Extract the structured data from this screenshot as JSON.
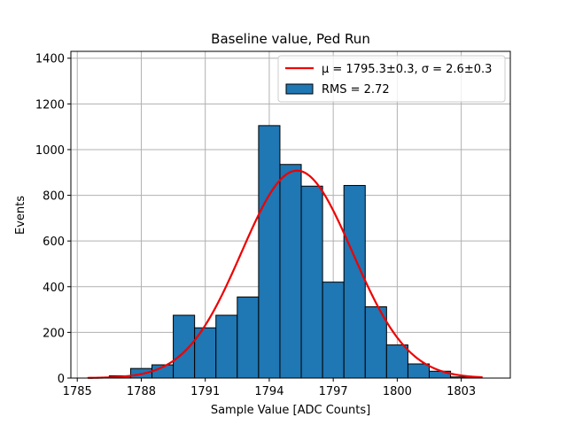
{
  "chart_data": {
    "type": "bar",
    "title": "Baseline value, Ped Run",
    "xlabel": "Sample Value [ADC Counts]",
    "ylabel": "Events",
    "xlim": [
      1784.7,
      1805.3
    ],
    "ylim": [
      0,
      1430
    ],
    "x_ticks": [
      1785,
      1788,
      1791,
      1794,
      1797,
      1800,
      1803
    ],
    "y_ticks": [
      0,
      200,
      400,
      600,
      800,
      1000,
      1200,
      1400
    ],
    "grid": true,
    "legend_position": "top-right",
    "bar_color": "#1f77b4",
    "fit_color": "#ee0000",
    "bins": [
      {
        "start": 1785.5,
        "end": 1786.5,
        "value": 2
      },
      {
        "start": 1786.5,
        "end": 1787.5,
        "value": 10
      },
      {
        "start": 1787.5,
        "end": 1788.5,
        "value": 42
      },
      {
        "start": 1788.5,
        "end": 1789.5,
        "value": 58
      },
      {
        "start": 1789.5,
        "end": 1790.5,
        "value": 275
      },
      {
        "start": 1790.5,
        "end": 1791.5,
        "value": 220
      },
      {
        "start": 1791.5,
        "end": 1792.5,
        "value": 275
      },
      {
        "start": 1792.5,
        "end": 1793.5,
        "value": 355
      },
      {
        "start": 1793.5,
        "end": 1794.5,
        "value": 1105
      },
      {
        "start": 1794.5,
        "end": 1795.5,
        "value": 935
      },
      {
        "start": 1795.5,
        "end": 1796.5,
        "value": 840
      },
      {
        "start": 1796.5,
        "end": 1797.5,
        "value": 420
      },
      {
        "start": 1797.5,
        "end": 1798.5,
        "value": 843
      },
      {
        "start": 1798.5,
        "end": 1799.5,
        "value": 312
      },
      {
        "start": 1799.5,
        "end": 1800.5,
        "value": 145
      },
      {
        "start": 1800.5,
        "end": 1801.5,
        "value": 62
      },
      {
        "start": 1801.5,
        "end": 1802.5,
        "value": 30
      },
      {
        "start": 1802.5,
        "end": 1803.5,
        "value": 5
      }
    ],
    "fit": {
      "type": "gaussian",
      "mu": 1795.3,
      "sigma": 2.6,
      "amplitude": 908,
      "x_range": [
        1785.5,
        1804.0
      ]
    },
    "legend": [
      {
        "kind": "line",
        "label": "μ = 1795.3±0.3, σ = 2.6±0.3"
      },
      {
        "kind": "patch",
        "label": "RMS = 2.72"
      }
    ]
  }
}
